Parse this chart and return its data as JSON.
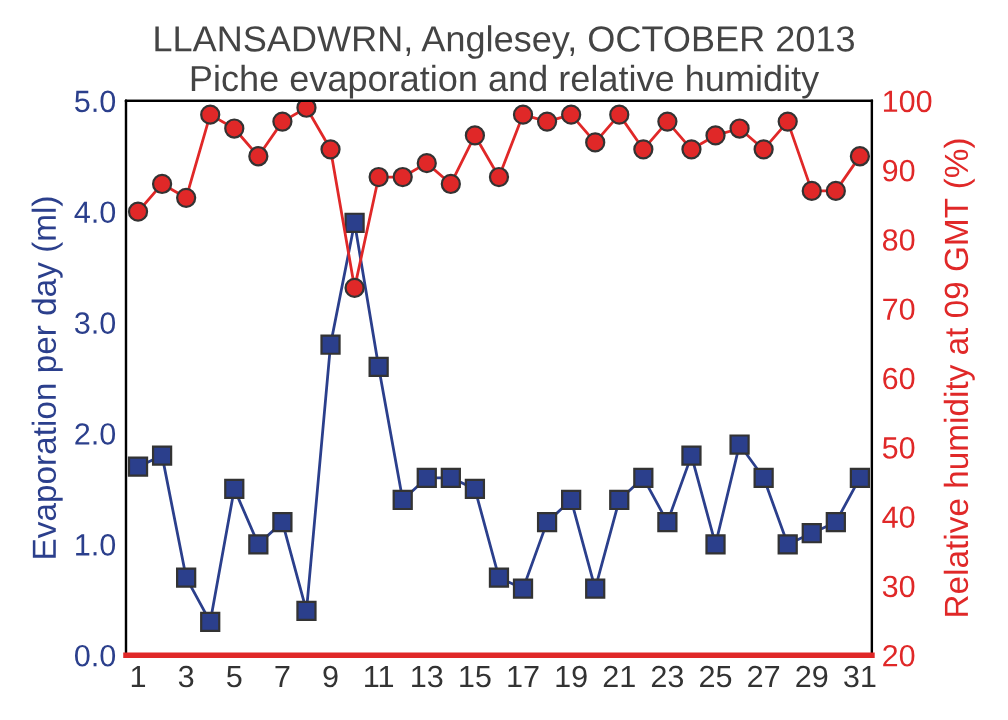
{
  "chart_data": {
    "type": "line",
    "title": "LLANSADWRN, Anglesey, OCTOBER 2013",
    "subtitle": "Piche evaporation and relative humidity",
    "ylabel": "Evaporation per day (ml)",
    "y2label": "Relative humidity at 09 GMT (%)",
    "x": [
      1,
      2,
      3,
      4,
      5,
      6,
      7,
      8,
      9,
      10,
      11,
      12,
      13,
      14,
      15,
      16,
      17,
      18,
      19,
      20,
      21,
      22,
      23,
      24,
      25,
      26,
      27,
      28,
      29,
      30,
      31
    ],
    "series": [
      {
        "color": "#2b3f8c",
        "marker": "square",
        "values": [
          1.7,
          1.8,
          0.7,
          0.3,
          1.5,
          1.0,
          1.2,
          0.4,
          2.8,
          3.9,
          2.6,
          1.4,
          1.6,
          1.6,
          1.5,
          0.7,
          0.6,
          1.2,
          1.4,
          0.6,
          1.4,
          1.6,
          1.2,
          1.8,
          1.0,
          1.9,
          1.6,
          1.0,
          1.1,
          1.2,
          1.6
        ]
      },
      {
        "color": "#e02828",
        "marker": "circle",
        "axis": "y2",
        "values": [
          84,
          88,
          86,
          98,
          96,
          92,
          97,
          99,
          93,
          73,
          89,
          89,
          91,
          88,
          95,
          89,
          98,
          97,
          98,
          94,
          98,
          93,
          97,
          93,
          95,
          96,
          93,
          97,
          87,
          87,
          92
        ]
      }
    ],
    "xlim": [
      0.5,
      31.5
    ],
    "xticks": [
      1,
      3,
      5,
      7,
      9,
      11,
      13,
      15,
      17,
      19,
      21,
      23,
      25,
      27,
      29,
      31
    ],
    "ylim": [
      0,
      5
    ],
    "yticks": [
      {
        "value": 0,
        "label": "0.0"
      },
      {
        "value": 1,
        "label": "1.0"
      },
      {
        "value": 2,
        "label": "2.0"
      },
      {
        "value": 3,
        "label": "3.0"
      },
      {
        "value": 4,
        "label": "4.0"
      },
      {
        "value": 5,
        "label": "5.0"
      }
    ],
    "y2lim": [
      20,
      100
    ],
    "y2ticks": [
      20,
      30,
      40,
      50,
      60,
      70,
      80,
      90,
      100
    ],
    "grid": false,
    "legend": false
  }
}
